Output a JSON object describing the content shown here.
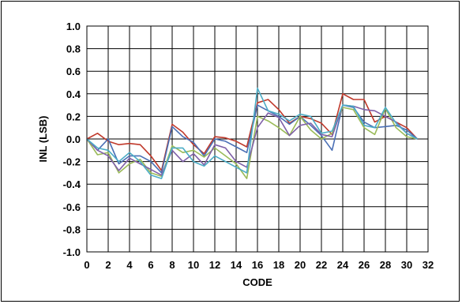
{
  "chart_data": {
    "type": "line",
    "title": "",
    "xlabel": "CODE",
    "ylabel": "INL (LSB)",
    "xlim": [
      0,
      32
    ],
    "ylim": [
      -1.0,
      1.0
    ],
    "x_ticks": [
      0,
      2,
      4,
      6,
      8,
      10,
      12,
      14,
      16,
      18,
      20,
      22,
      24,
      26,
      28,
      30,
      32
    ],
    "y_ticks": [
      "1.0",
      "0.8",
      "0.6",
      "0.4",
      "0.2",
      "0.0",
      "-0.2",
      "-0.4",
      "-0.6",
      "-0.8",
      "-1.0"
    ],
    "grid": true,
    "legend": "none",
    "x": [
      0,
      1,
      2,
      3,
      4,
      5,
      6,
      7,
      8,
      9,
      10,
      11,
      12,
      13,
      14,
      15,
      16,
      17,
      18,
      19,
      20,
      21,
      22,
      23,
      24,
      25,
      26,
      27,
      28,
      29,
      30,
      31
    ],
    "series": [
      {
        "color": "#C0392B",
        "values": [
          0.0,
          0.05,
          -0.02,
          -0.05,
          -0.04,
          -0.05,
          -0.15,
          -0.28,
          0.13,
          0.06,
          -0.05,
          -0.13,
          0.02,
          0.01,
          -0.02,
          -0.07,
          0.32,
          0.35,
          0.26,
          0.14,
          0.2,
          0.18,
          0.14,
          0.04,
          0.4,
          0.35,
          0.35,
          0.15,
          0.2,
          0.15,
          0.1,
          0.0
        ]
      },
      {
        "color": "#4A6FB5",
        "values": [
          0.0,
          -0.1,
          0.0,
          -0.22,
          -0.15,
          -0.15,
          -0.2,
          -0.3,
          0.11,
          0.02,
          -0.03,
          -0.15,
          0.0,
          -0.02,
          -0.07,
          -0.12,
          0.3,
          0.25,
          0.2,
          0.13,
          0.2,
          0.12,
          0.03,
          -0.1,
          0.3,
          0.28,
          0.15,
          0.1,
          0.11,
          0.12,
          0.08,
          0.0
        ]
      },
      {
        "color": "#9BBB59",
        "values": [
          0.0,
          -0.14,
          -0.12,
          -0.3,
          -0.22,
          -0.18,
          -0.3,
          -0.33,
          -0.06,
          -0.12,
          -0.1,
          -0.16,
          -0.08,
          -0.15,
          -0.22,
          -0.35,
          0.2,
          0.16,
          0.1,
          0.03,
          0.2,
          0.08,
          0.0,
          0.05,
          0.28,
          0.26,
          0.1,
          0.04,
          0.27,
          0.1,
          0.02,
          0.0
        ]
      },
      {
        "color": "#7F60A8",
        "values": [
          0.0,
          -0.1,
          -0.15,
          -0.28,
          -0.17,
          -0.22,
          -0.27,
          -0.32,
          -0.1,
          -0.2,
          -0.13,
          -0.23,
          -0.05,
          -0.08,
          -0.2,
          -0.25,
          0.1,
          0.23,
          0.19,
          0.03,
          0.12,
          0.14,
          0.04,
          0.02,
          0.3,
          0.29,
          0.26,
          0.25,
          0.2,
          0.15,
          0.05,
          0.0
        ]
      },
      {
        "color": "#4BACC6",
        "values": [
          0.0,
          -0.08,
          -0.1,
          -0.2,
          -0.12,
          -0.2,
          -0.32,
          -0.35,
          -0.08,
          -0.08,
          -0.2,
          -0.24,
          -0.15,
          -0.2,
          -0.25,
          -0.3,
          0.45,
          0.25,
          0.22,
          0.16,
          0.22,
          0.2,
          0.05,
          0.07,
          0.3,
          0.29,
          0.12,
          0.1,
          0.28,
          0.14,
          0.05,
          0.0
        ]
      }
    ]
  }
}
